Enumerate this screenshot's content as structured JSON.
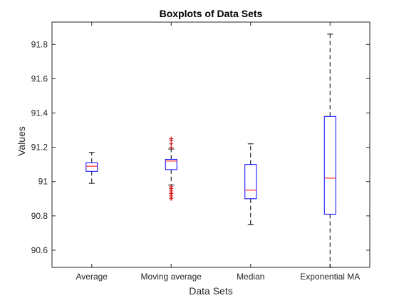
{
  "chart_data": {
    "type": "box",
    "title": "Boxplots of Data Sets",
    "xlabel": "Data Sets",
    "ylabel": "Values",
    "ylim": [
      90.5,
      91.93
    ],
    "yticks": [
      90.6,
      90.8,
      91,
      91.2,
      91.4,
      91.6,
      91.8
    ],
    "ytick_labels": [
      "90.6",
      "90.8",
      "91",
      "91.2",
      "91.4",
      "91.6",
      "91.8"
    ],
    "grid": false,
    "colors": {
      "box": "#0000ff",
      "median": "#ff0000",
      "whisker": "#000000",
      "outlier": "#cc0000"
    },
    "categories": [
      "Average",
      "Moving average",
      "Median",
      "Exponential MA"
    ],
    "boxes": [
      {
        "category": "Average",
        "whisker_low": 90.99,
        "q1": 91.06,
        "median": 91.09,
        "q3": 91.11,
        "whisker_high": 91.17,
        "outliers": []
      },
      {
        "category": "Moving average",
        "whisker_low": 90.98,
        "q1": 91.07,
        "median": 91.12,
        "q3": 91.13,
        "whisker_high": 91.19,
        "outliers": [
          90.9,
          90.91,
          90.92,
          90.93,
          90.94,
          90.95,
          90.96,
          90.97,
          91.2,
          91.22,
          91.24,
          91.25
        ]
      },
      {
        "category": "Median",
        "whisker_low": 90.75,
        "q1": 90.9,
        "median": 90.95,
        "q3": 91.1,
        "whisker_high": 91.22,
        "outliers": []
      },
      {
        "category": "Exponential MA",
        "whisker_low": 90.5,
        "q1": 90.81,
        "median": 91.02,
        "q3": 91.38,
        "whisker_high": 91.86,
        "outliers": []
      }
    ]
  }
}
